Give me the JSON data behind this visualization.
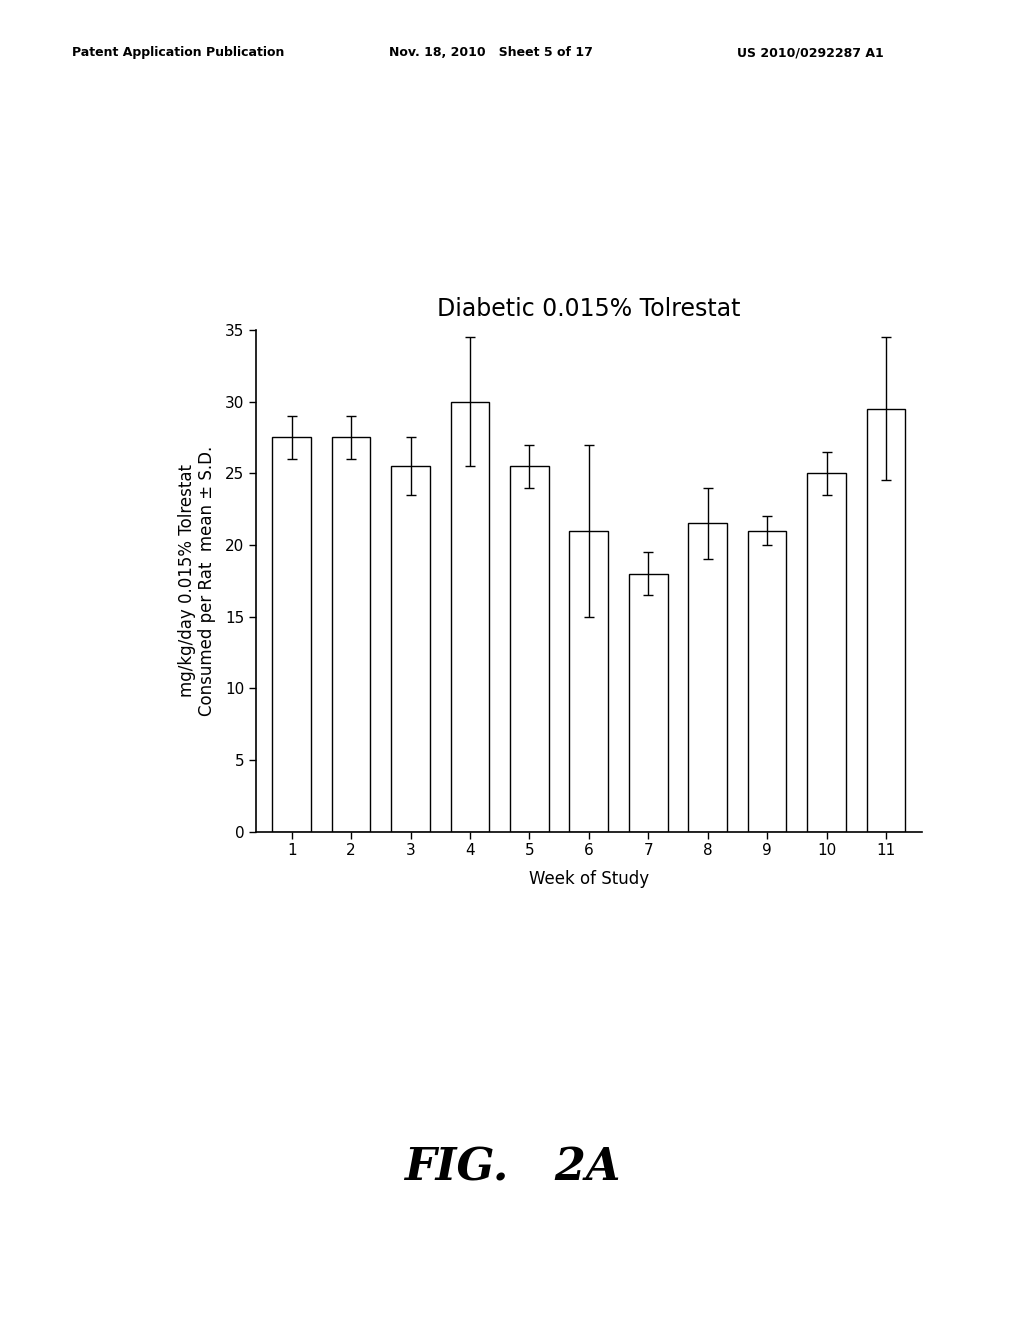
{
  "title": "Diabetic 0.015% Tolrestat",
  "xlabel": "Week of Study",
  "ylabel_line1": "mg/kg/day 0.015% Tolrestat",
  "ylabel_line2": "Consumed per Rat  mean ± S.D.",
  "weeks": [
    1,
    2,
    3,
    4,
    5,
    6,
    7,
    8,
    9,
    10,
    11
  ],
  "values": [
    27.5,
    27.5,
    25.5,
    30.0,
    25.5,
    21.0,
    18.0,
    21.5,
    21.0,
    25.0,
    29.5
  ],
  "errors": [
    1.5,
    1.5,
    2.0,
    4.5,
    1.5,
    6.0,
    1.5,
    2.5,
    1.0,
    1.5,
    5.0
  ],
  "ylim": [
    0,
    35
  ],
  "yticks": [
    0,
    5,
    10,
    15,
    20,
    25,
    30,
    35
  ],
  "bar_color": "#ffffff",
  "bar_edgecolor": "#000000",
  "background_color": "#ffffff",
  "title_fontsize": 17,
  "label_fontsize": 12,
  "tick_fontsize": 11,
  "fig_label": "FIG.   2A",
  "header_left": "Patent Application Publication",
  "header_mid": "Nov. 18, 2010   Sheet 5 of 17",
  "header_right": "US 2010/0292287 A1"
}
